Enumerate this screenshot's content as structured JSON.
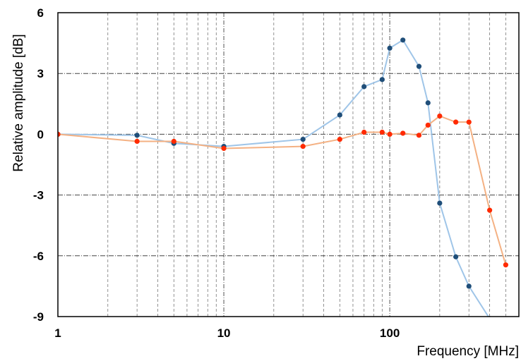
{
  "chart_data": {
    "type": "line",
    "xlabel": "Frequency [MHz]",
    "ylabel": "Relative amplitude [dB]",
    "x_scale": "log",
    "xlim": [
      1,
      600
    ],
    "ylim": [
      -9,
      6
    ],
    "x_ticks": [
      1,
      10,
      100
    ],
    "x_tick_labels": [
      "1",
      "10",
      "100"
    ],
    "y_ticks": [
      6,
      3,
      0,
      -3,
      -6,
      -9
    ],
    "y_tick_labels": [
      "6",
      "3",
      "0",
      "-3",
      "-6",
      "-9"
    ],
    "grid": true,
    "legend": "none",
    "series": [
      {
        "color": "#9fc5e8",
        "marker_color": "#1f4e79",
        "x": [
          1,
          3,
          5,
          10,
          30,
          50,
          70,
          90,
          100,
          120,
          150,
          170,
          200,
          250,
          300,
          400
        ],
        "y": [
          0,
          -0.05,
          -0.45,
          -0.6,
          -0.25,
          0.95,
          2.35,
          2.7,
          4.25,
          4.65,
          3.35,
          1.55,
          -3.4,
          -6.05,
          -7.5,
          -9.1
        ]
      },
      {
        "color": "#f4b183",
        "marker_color": "#ff2a00",
        "x": [
          1,
          3,
          5,
          10,
          30,
          50,
          70,
          90,
          100,
          120,
          150,
          170,
          200,
          250,
          300,
          400,
          500
        ],
        "y": [
          0,
          -0.35,
          -0.35,
          -0.7,
          -0.6,
          -0.25,
          0.1,
          0.1,
          0,
          0.05,
          -0.05,
          0.45,
          0.9,
          0.6,
          0.6,
          -3.75,
          -6.45
        ]
      }
    ]
  }
}
